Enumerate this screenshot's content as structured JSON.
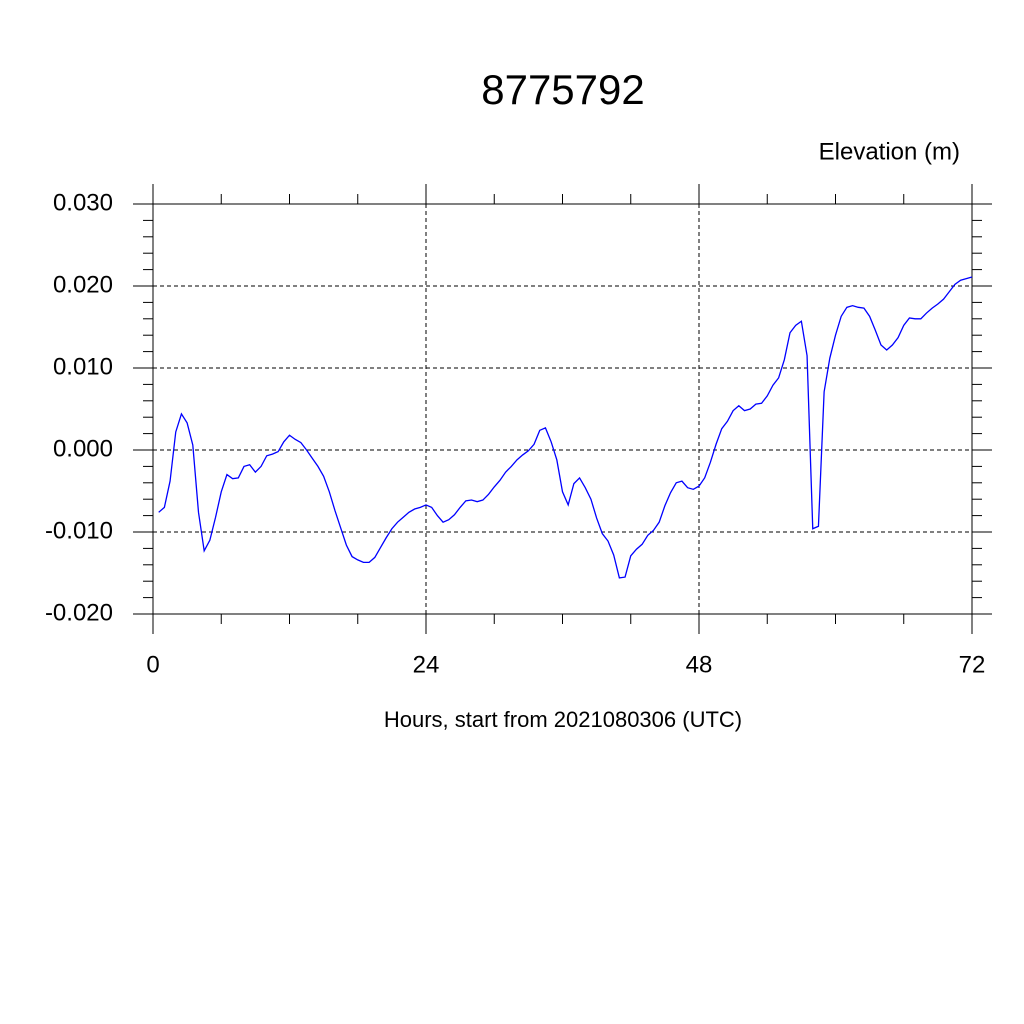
{
  "chart_data": {
    "type": "line",
    "title": "8775792",
    "ylabel": "Elevation (m)",
    "xlabel": "Hours, start from 2021080306 (UTC)",
    "xlim": [
      0,
      72
    ],
    "xticks": [
      0,
      24,
      48,
      72
    ],
    "xminorticks": [
      6,
      12,
      18,
      30,
      36,
      42,
      54,
      60,
      66
    ],
    "ylim": [
      -0.02,
      0.03
    ],
    "yticks": [
      {
        "value": -0.02,
        "label": "-0.020"
      },
      {
        "value": -0.01,
        "label": "-0.010"
      },
      {
        "value": 0,
        "label": "0.000"
      },
      {
        "value": 0.01,
        "label": "0.010"
      },
      {
        "value": 0.02,
        "label": "0.020"
      },
      {
        "value": 0.03,
        "label": "0.030"
      }
    ],
    "yminorticks": [
      -0.018,
      -0.016,
      -0.014,
      -0.012,
      -0.008,
      -0.006,
      -0.004,
      -0.002,
      0.002,
      0.004,
      0.006,
      0.008,
      0.012,
      0.014,
      0.016,
      0.018,
      0.022,
      0.024,
      0.026,
      0.028
    ],
    "grid": true,
    "x": [
      0.5,
      1,
      1.5,
      2,
      2.5,
      3,
      3.5,
      4,
      4.5,
      5,
      5.5,
      6,
      6.5,
      7,
      7.5,
      8,
      8.5,
      9,
      9.5,
      10,
      10.5,
      11,
      11.5,
      12,
      12.5,
      13,
      13.5,
      14,
      14.5,
      15,
      15.5,
      16,
      16.5,
      17,
      17.5,
      18,
      18.5,
      19,
      19.5,
      20,
      20.5,
      21,
      21.5,
      22,
      22.5,
      23,
      23.5,
      24,
      24.5,
      25,
      25.5,
      26,
      26.5,
      27,
      27.5,
      28,
      28.5,
      29,
      29.5,
      30,
      30.5,
      31,
      31.5,
      32,
      32.5,
      33,
      33.5,
      34,
      34.5,
      35,
      35.5,
      36,
      36.5,
      37,
      37.5,
      38,
      38.5,
      39,
      39.5,
      40,
      40.5,
      41,
      41.5,
      42,
      42.5,
      43,
      43.5,
      44,
      44.5,
      45,
      45.5,
      46,
      46.5,
      47,
      47.5,
      48,
      48.5,
      49,
      49.5,
      50,
      50.5,
      51,
      51.5,
      52,
      52.5,
      53,
      53.5,
      54,
      54.5,
      55,
      55.5,
      56,
      56.5,
      57,
      57.5,
      58,
      58.5,
      59,
      59.5,
      60,
      60.5,
      61,
      61.5,
      62,
      62.5,
      63,
      63.5,
      64,
      64.5,
      65,
      65.5,
      66,
      66.5,
      67,
      67.5,
      68,
      68.5,
      69,
      69.5,
      70,
      70.5,
      71,
      71.5,
      72
    ],
    "series": [
      {
        "color": "#0000ff",
        "values": [
          -0.0076,
          -0.007,
          -0.0038,
          0.0022,
          0.0044,
          0.0033,
          0.0006,
          -0.0076,
          -0.0123,
          -0.011,
          -0.0082,
          -0.0051,
          -0.003,
          -0.0035,
          -0.0034,
          -0.002,
          -0.0018,
          -0.0027,
          -0.002,
          -0.0007,
          -0.0005,
          -0.0002,
          0.001,
          0.0018,
          0.0013,
          0.0009,
          0,
          -0.001,
          -0.002,
          -0.0032,
          -0.0051,
          -0.0074,
          -0.0095,
          -0.0116,
          -0.013,
          -0.0134,
          -0.0137,
          -0.0137,
          -0.0131,
          -0.0119,
          -0.0107,
          -0.0096,
          -0.0088,
          -0.0082,
          -0.0076,
          -0.0072,
          -0.007,
          -0.0067,
          -0.007,
          -0.008,
          -0.0088,
          -0.0085,
          -0.0079,
          -0.007,
          -0.0062,
          -0.0061,
          -0.0063,
          -0.0061,
          -0.0054,
          -0.0045,
          -0.0037,
          -0.0027,
          -0.002,
          -0.0012,
          -0.0006,
          -0.0001,
          0.0007,
          0.0024,
          0.0027,
          0.001,
          -0.0012,
          -0.0051,
          -0.0067,
          -0.0041,
          -0.0034,
          -0.0046,
          -0.006,
          -0.0083,
          -0.0102,
          -0.0111,
          -0.0128,
          -0.0156,
          -0.0155,
          -0.0129,
          -0.0121,
          -0.0115,
          -0.0104,
          -0.0098,
          -0.0088,
          -0.0068,
          -0.0052,
          -0.004,
          -0.0038,
          -0.0046,
          -0.0048,
          -0.0044,
          -0.0034,
          -0.0015,
          0.0007,
          0.0026,
          0.0035,
          0.0048,
          0.0054,
          0.0048,
          0.005,
          0.0056,
          0.0057,
          0.0066,
          0.0079,
          0.0088,
          0.011,
          0.0143,
          0.0152,
          0.0157,
          0.0115,
          -0.0096,
          -0.0093,
          0.0071,
          0.0112,
          0.014,
          0.0163,
          0.0174,
          0.0176,
          0.0174,
          0.0173,
          0.0163,
          0.0146,
          0.0128,
          0.0122,
          0.0128,
          0.0137,
          0.0152,
          0.0161,
          0.016,
          0.016,
          0.0167,
          0.0173,
          0.0178,
          0.0184,
          0.0193,
          0.0202,
          0.0207,
          0.0209,
          0.0211
        ]
      }
    ]
  }
}
